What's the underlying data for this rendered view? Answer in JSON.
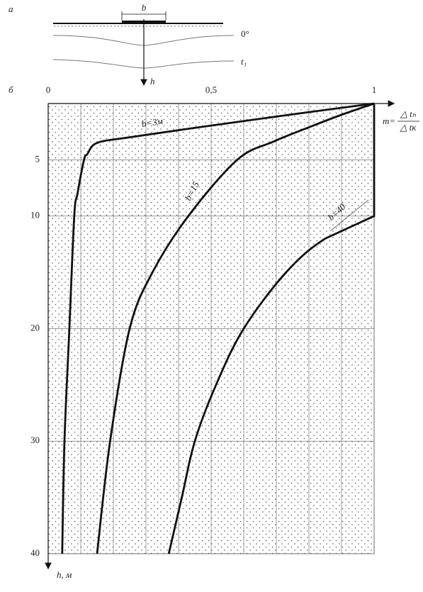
{
  "panel_a": {
    "letter": "а",
    "width_label": "b",
    "isotherm_0": "0°",
    "isotherm_t1": "t₁",
    "depth_label": "h"
  },
  "chart_data": {
    "type": "line",
    "letter": "б",
    "x_label": {
      "left": "m=",
      "num": "△ tₕ",
      "den": "△ tк"
    },
    "y_label": "h, м",
    "xlim": [
      0,
      1
    ],
    "xticks": [
      0,
      {
        "value": 0.5,
        "label": "0,5"
      },
      1
    ],
    "xminorticks": [
      0.1,
      0.2,
      0.3,
      0.4,
      0.6,
      0.7,
      0.8,
      0.9
    ],
    "ylim": [
      0,
      40
    ],
    "yticks": [
      5,
      10,
      20,
      30,
      40
    ],
    "y_inverted": true,
    "grid": true,
    "series": [
      {
        "name": "b=3м",
        "color": "#111",
        "x": [
          1,
          0.74,
          0.49,
          0.25,
          0.15,
          0.12,
          0.11,
          0.09,
          0.08,
          0.065,
          0.05,
          0.043
        ],
        "values": [
          0,
          1,
          2,
          3,
          3.5,
          4.5,
          5,
          8,
          10,
          20,
          30,
          40
        ]
      },
      {
        "name": "b=15",
        "color": "#111",
        "x": [
          1,
          0.9,
          0.81,
          0.69,
          0.58,
          0.43,
          0.32,
          0.25,
          0.19,
          0.15
        ],
        "values": [
          0,
          1,
          2,
          3.4,
          5,
          10,
          15,
          20,
          30,
          40
        ]
      },
      {
        "name": "b=40",
        "color": "#111",
        "x": [
          1,
          1,
          0.85,
          0.73,
          0.6,
          0.515,
          0.45,
          0.41,
          0.37
        ],
        "values": [
          0,
          10,
          12,
          15,
          20,
          25,
          30,
          35,
          40
        ]
      }
    ]
  }
}
